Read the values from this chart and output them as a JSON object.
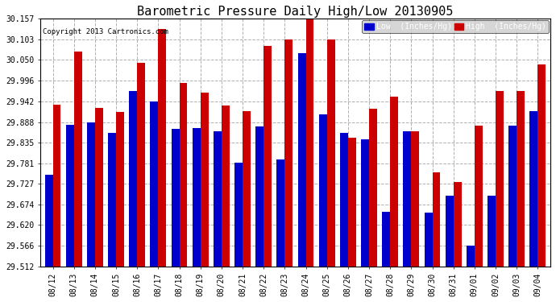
{
  "title": "Barometric Pressure Daily High/Low 20130905",
  "copyright": "Copyright 2013 Cartronics.com",
  "legend_low": "Low  (Inches/Hg)",
  "legend_high": "High  (Inches/Hg)",
  "dates": [
    "08/12",
    "08/13",
    "08/14",
    "08/15",
    "08/16",
    "08/17",
    "08/18",
    "08/19",
    "08/20",
    "08/21",
    "08/22",
    "08/23",
    "08/24",
    "08/25",
    "08/26",
    "08/27",
    "08/28",
    "08/29",
    "08/30",
    "08/31",
    "09/01",
    "09/02",
    "09/03",
    "09/04"
  ],
  "low_values": [
    29.751,
    29.88,
    29.888,
    29.86,
    29.968,
    29.942,
    29.87,
    29.873,
    29.863,
    29.783,
    29.877,
    29.79,
    30.067,
    29.908,
    29.86,
    29.843,
    29.655,
    29.863,
    29.652,
    29.697,
    29.566,
    29.697,
    29.878,
    29.916
  ],
  "high_values": [
    29.934,
    30.072,
    29.924,
    29.914,
    30.043,
    30.13,
    29.989,
    29.965,
    29.93,
    29.916,
    30.086,
    30.103,
    30.157,
    30.103,
    29.847,
    29.923,
    29.954,
    29.863,
    29.757,
    29.733,
    29.879,
    29.968,
    29.968,
    30.038
  ],
  "ymin": 29.512,
  "ymax": 30.157,
  "yticks": [
    29.512,
    29.566,
    29.62,
    29.674,
    29.727,
    29.781,
    29.835,
    29.888,
    29.942,
    29.996,
    30.05,
    30.103,
    30.157
  ],
  "low_color": "#0000cc",
  "high_color": "#cc0000",
  "bg_color": "#ffffff",
  "plot_bg_color": "#ffffff",
  "grid_color": "#b0b0b0",
  "title_fontsize": 11,
  "bar_width": 0.38,
  "fig_width": 6.9,
  "fig_height": 3.75,
  "dpi": 100
}
